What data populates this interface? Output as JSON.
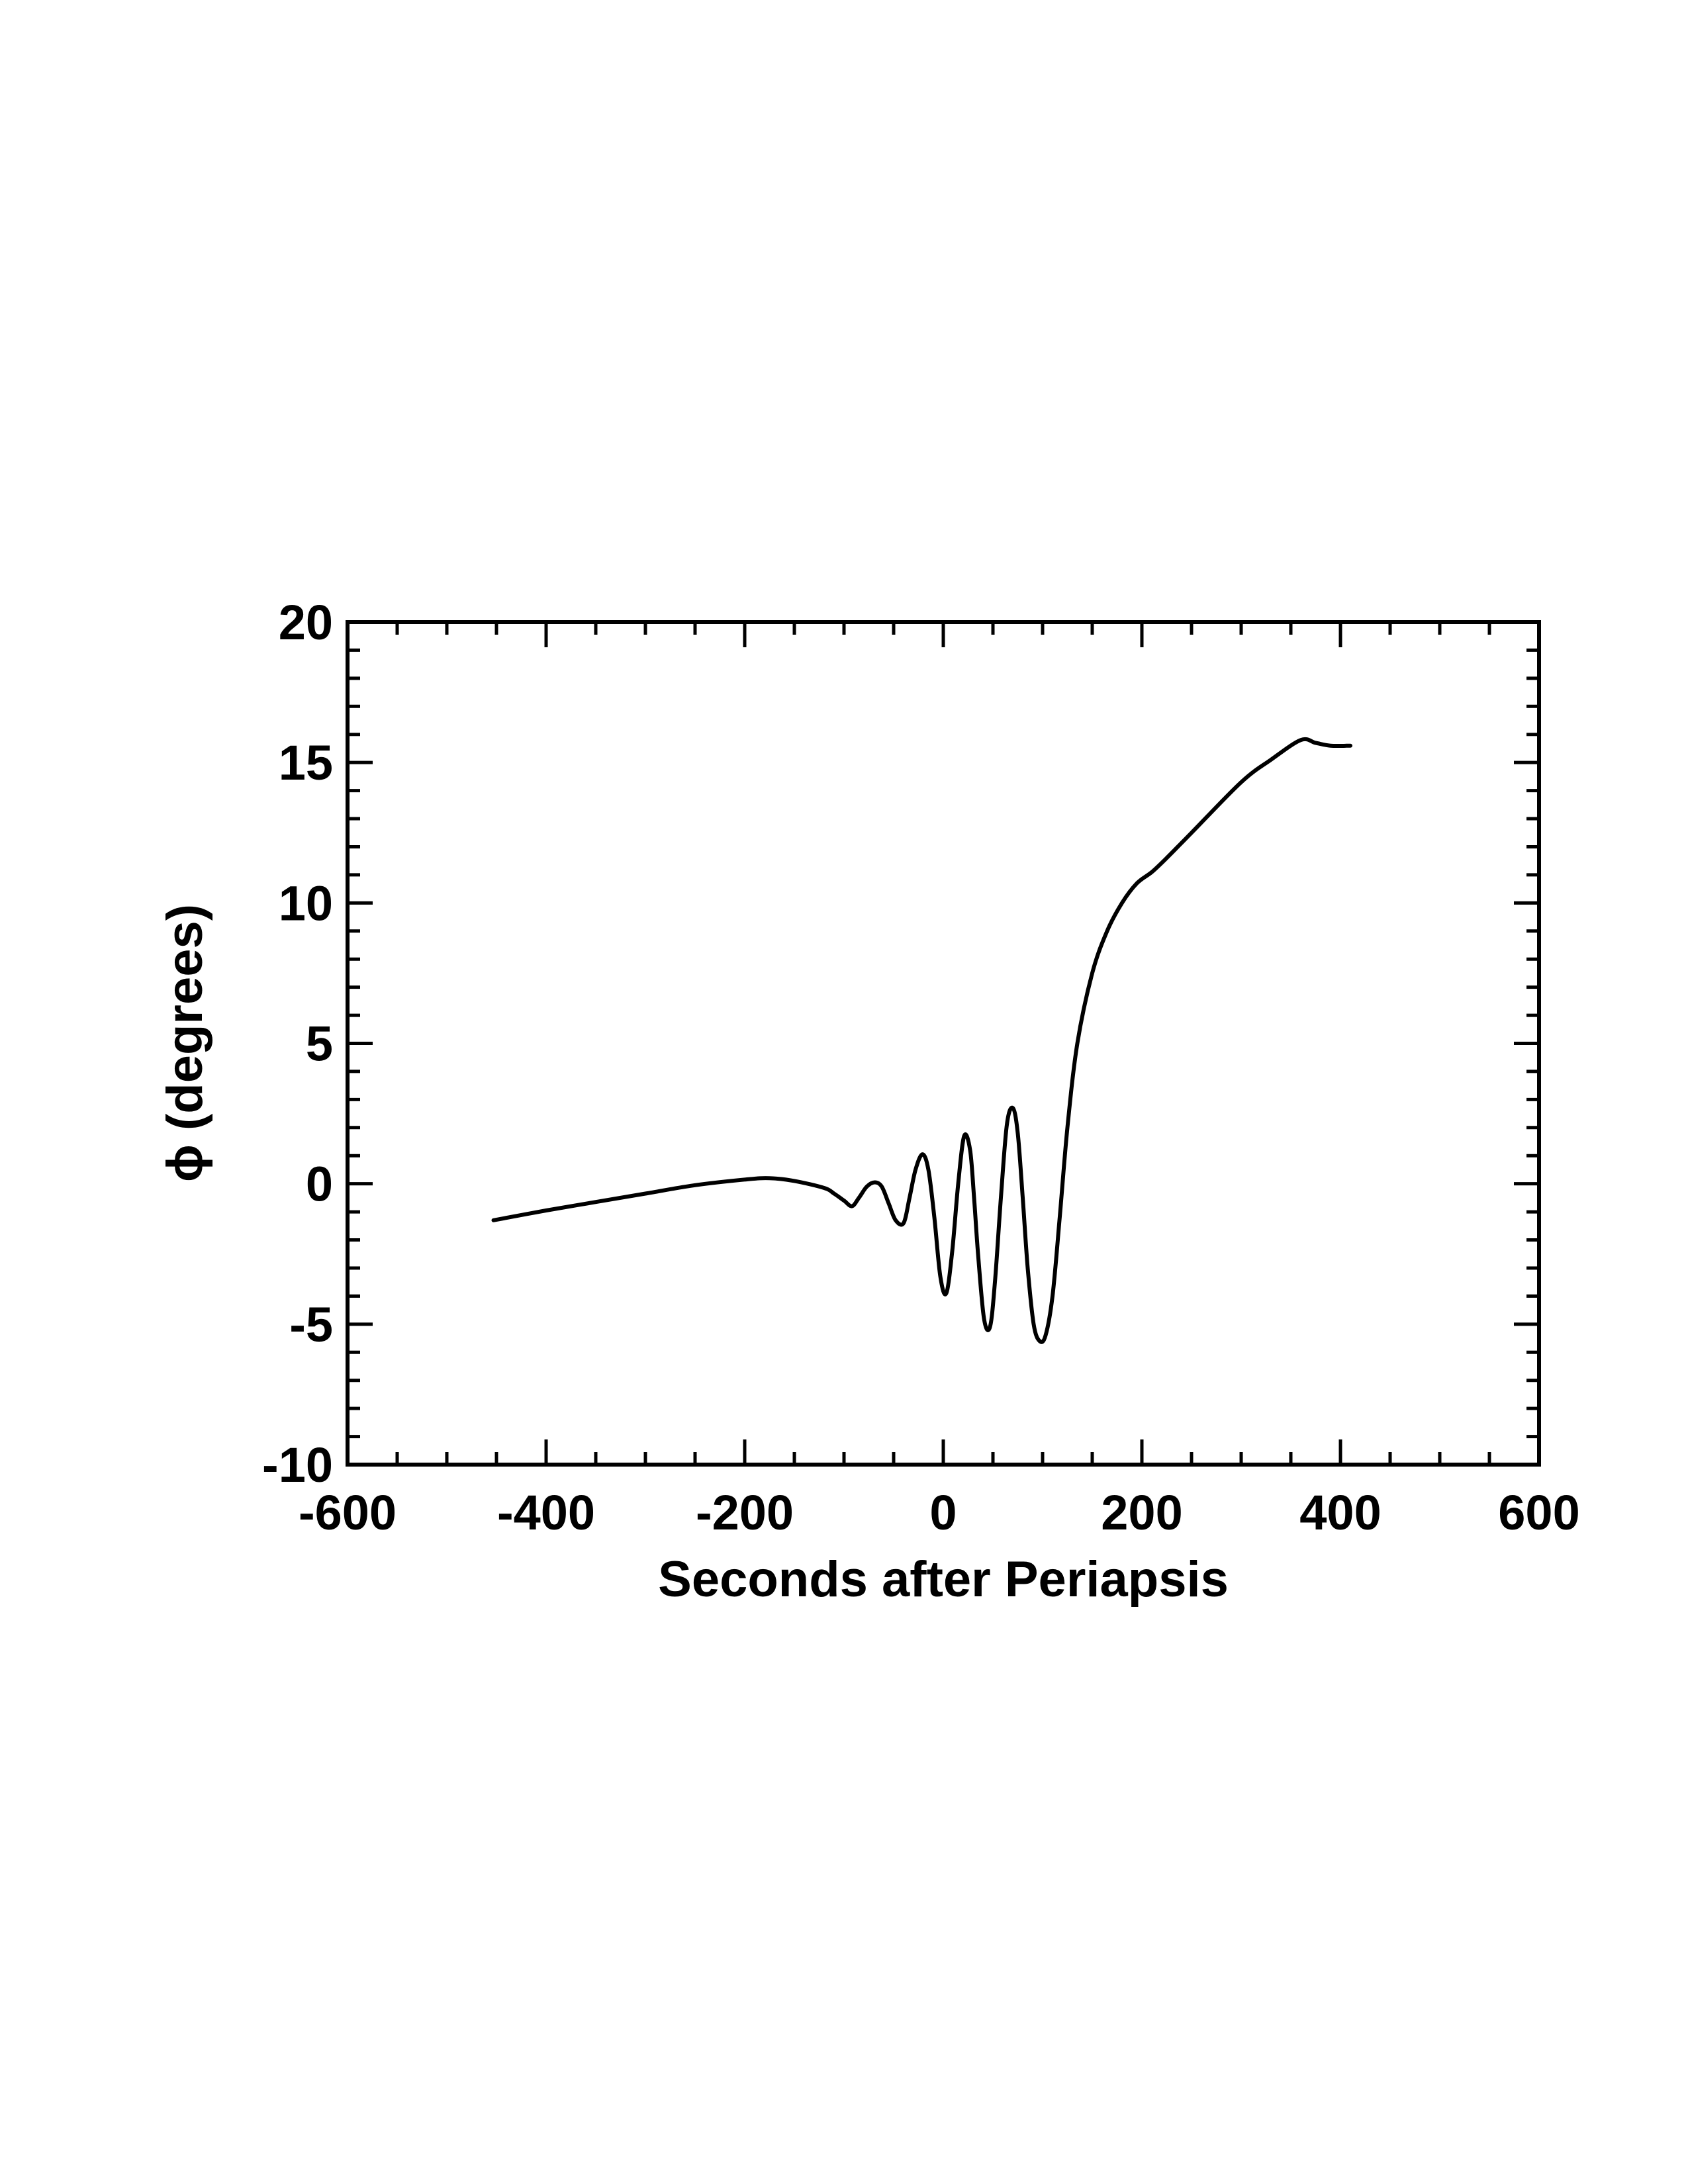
{
  "chart_data": {
    "type": "line",
    "xlabel": "Seconds after Periapsis",
    "ylabel": "ϕ (degrees)",
    "xlim": [
      -600,
      600
    ],
    "ylim": [
      -10,
      20
    ],
    "x_ticks": [
      -600,
      -400,
      -200,
      0,
      200,
      400,
      600
    ],
    "x_tick_labels": [
      "-600",
      "-400",
      "-200",
      "0",
      "200",
      "400",
      "600"
    ],
    "y_ticks": [
      -10,
      -5,
      0,
      5,
      10,
      15,
      20
    ],
    "y_tick_labels": [
      "-10",
      "-5",
      "0",
      "5",
      "10",
      "15",
      "20"
    ],
    "grid": false,
    "line_color": "#000000",
    "series": [
      {
        "x": [
          -453,
          -400,
          -350,
          -300,
          -250,
          -200,
          -175,
          -150,
          -120,
          -110,
          -100,
          -92,
          -85,
          -77,
          -69,
          -62,
          -55,
          -48,
          -40,
          -34,
          -28,
          -21,
          -15,
          -9,
          -3,
          3,
          9,
          15,
          21,
          27,
          31,
          35,
          41,
          47,
          52,
          58,
          64,
          70,
          75,
          80,
          85,
          91,
          97,
          103,
          110,
          117,
          125,
          135,
          150,
          165,
          180,
          195,
          210,
          225,
          250,
          300,
          330,
          360,
          375,
          390,
          410
        ],
        "y": [
          -1.3,
          -0.95,
          -0.65,
          -0.35,
          -0.05,
          0.15,
          0.2,
          0.1,
          -0.15,
          -0.35,
          -0.6,
          -0.8,
          -0.5,
          -0.1,
          0.05,
          -0.1,
          -0.7,
          -1.3,
          -1.4,
          -0.5,
          0.5,
          1.05,
          0.5,
          -1.2,
          -3.3,
          -3.9,
          -2.4,
          0.0,
          1.7,
          1.2,
          -0.5,
          -2.5,
          -4.8,
          -5.1,
          -3.5,
          -0.5,
          2.1,
          2.7,
          1.8,
          -0.5,
          -3.0,
          -5.0,
          -5.6,
          -5.4,
          -4.0,
          -1.3,
          2.0,
          5.0,
          7.5,
          9.0,
          10.0,
          10.7,
          11.1,
          11.6,
          12.5,
          14.3,
          15.1,
          15.8,
          15.7,
          15.6,
          15.6
        ]
      }
    ]
  }
}
